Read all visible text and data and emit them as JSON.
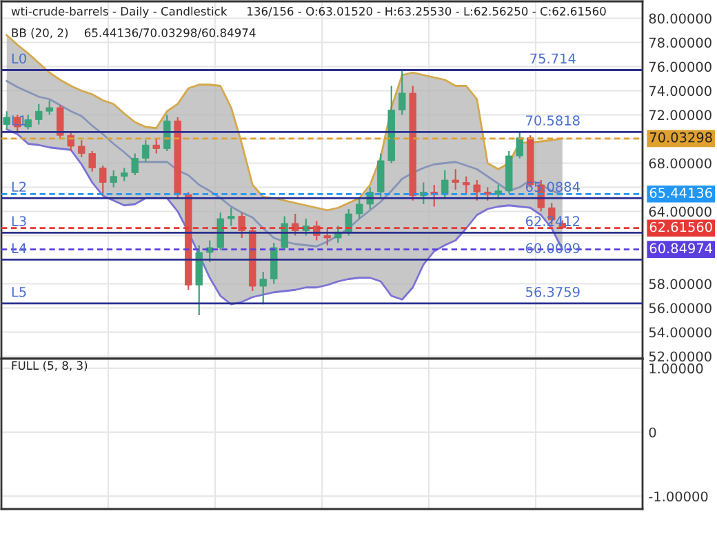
{
  "chart_data": [
    {
      "type": "candlestick",
      "title": "wti-crude-barrels - Daily - Candlestick",
      "subtitle": "136/156 - O:63.01520 - H:63.25530 - L:62.56250 - C:62.61560",
      "categories": [
        null,
        null,
        null,
        null,
        null,
        null,
        null,
        null,
        null,
        null,
        null,
        null,
        null,
        null,
        null,
        null,
        null,
        null,
        null,
        null,
        null,
        null,
        null,
        null,
        null,
        null,
        null,
        null,
        null,
        null,
        null,
        null,
        null,
        null,
        null,
        null,
        null,
        null,
        null,
        null,
        null,
        null,
        null,
        null,
        null,
        null,
        null,
        null,
        null,
        null,
        null,
        null,
        null,
        null,
        null,
        null,
        null,
        null
      ],
      "ohlc": [
        [
          71.2,
          72.3,
          70.8,
          71.8
        ],
        [
          71.8,
          72.0,
          70.6,
          71.0
        ],
        [
          71.0,
          72.0,
          70.8,
          71.6
        ],
        [
          71.6,
          72.9,
          71.2,
          72.3
        ],
        [
          72.3,
          73.2,
          72.0,
          72.6
        ],
        [
          72.6,
          72.8,
          70.0,
          70.3
        ],
        [
          70.3,
          70.6,
          69.0,
          69.4
        ],
        [
          69.4,
          69.9,
          68.5,
          68.8
        ],
        [
          68.8,
          69.0,
          67.3,
          67.6
        ],
        [
          67.6,
          67.8,
          65.3,
          66.4
        ],
        [
          66.4,
          67.4,
          66.0,
          66.9
        ],
        [
          66.9,
          67.6,
          66.5,
          67.2
        ],
        [
          67.2,
          68.8,
          67.0,
          68.4
        ],
        [
          68.4,
          69.9,
          68.1,
          69.5
        ],
        [
          69.5,
          70.0,
          68.8,
          69.2
        ],
        [
          69.2,
          72.0,
          69.0,
          71.5
        ],
        [
          71.5,
          71.8,
          65.0,
          65.4
        ],
        [
          65.4,
          65.6,
          57.5,
          57.9
        ],
        [
          57.9,
          61.2,
          55.4,
          60.6
        ],
        [
          60.6,
          61.6,
          59.8,
          61.0
        ],
        [
          61.0,
          63.9,
          60.8,
          63.4
        ],
        [
          63.4,
          64.3,
          62.8,
          63.6
        ],
        [
          63.6,
          63.9,
          61.8,
          62.4
        ],
        [
          62.4,
          62.6,
          57.4,
          57.8
        ],
        [
          57.8,
          59.0,
          56.3,
          58.4
        ],
        [
          58.4,
          61.4,
          58.0,
          61.0
        ],
        [
          61.0,
          63.6,
          60.8,
          63.0
        ],
        [
          63.0,
          63.8,
          62.0,
          62.4
        ],
        [
          62.4,
          63.4,
          62.0,
          62.8
        ],
        [
          62.8,
          63.2,
          61.6,
          62.0
        ],
        [
          62.0,
          62.6,
          61.2,
          61.8
        ],
        [
          61.8,
          62.8,
          61.4,
          62.3
        ],
        [
          62.3,
          64.2,
          62.0,
          63.8
        ],
        [
          63.8,
          65.2,
          63.4,
          64.6
        ],
        [
          64.6,
          66.0,
          64.2,
          65.6
        ],
        [
          65.6,
          68.8,
          65.2,
          68.2
        ],
        [
          68.2,
          74.4,
          68.0,
          72.4
        ],
        [
          72.4,
          75.7,
          72.0,
          73.8
        ],
        [
          73.8,
          74.4,
          64.9,
          65.3
        ],
        [
          65.3,
          66.4,
          64.6,
          65.6
        ],
        [
          65.6,
          66.2,
          64.4,
          65.4
        ],
        [
          65.4,
          67.4,
          65.0,
          66.6
        ],
        [
          66.6,
          67.5,
          65.8,
          66.4
        ],
        [
          66.4,
          66.9,
          65.4,
          66.2
        ],
        [
          66.2,
          66.6,
          64.9,
          65.6
        ],
        [
          65.6,
          66.0,
          64.9,
          65.4
        ],
        [
          65.4,
          66.2,
          65.0,
          65.7
        ],
        [
          65.7,
          69.0,
          65.5,
          68.6
        ],
        [
          68.6,
          70.6,
          68.4,
          70.1
        ],
        [
          70.1,
          70.3,
          66.0,
          66.2
        ],
        [
          66.2,
          66.6,
          64.0,
          64.3
        ],
        [
          64.3,
          64.7,
          62.9,
          63.3
        ],
        [
          63.0152,
          63.2553,
          62.5625,
          62.6156
        ],
        null,
        null,
        null,
        null,
        null
      ],
      "series": [
        {
          "type": "line",
          "color": "#d4a94a",
          "values": [
            78.6,
            77.8,
            77.1,
            76.3,
            75.5,
            74.9,
            74.4,
            74.0,
            73.7,
            73.2,
            72.9,
            72.1,
            71.4,
            71.0,
            70.9,
            72.3,
            72.9,
            74.2,
            74.5,
            74.5,
            74.4,
            72.6,
            69.6,
            66.2,
            65.2,
            65.1,
            64.9,
            64.7,
            64.5,
            64.3,
            64.1,
            64.3,
            64.7,
            65.1,
            66.2,
            68.5,
            72.6,
            75.3,
            75.5,
            75.3,
            75.1,
            74.9,
            74.4,
            74.4,
            73.3,
            68.0,
            67.5,
            68.0,
            69.7,
            69.7,
            69.8,
            69.9,
            70.03298,
            null,
            null,
            null,
            null,
            null
          ]
        },
        {
          "type": "line",
          "color": "#8595b8",
          "values": [
            74.8,
            74.3,
            73.9,
            73.5,
            73.3,
            72.8,
            72.3,
            71.9,
            71.1,
            70.4,
            69.6,
            68.9,
            68.1,
            68.1,
            68.1,
            68.1,
            67.4,
            67.0,
            66.2,
            65.7,
            65.1,
            64.4,
            63.9,
            63.5,
            62.6,
            61.8,
            61.5,
            61.3,
            61.2,
            61.1,
            61.5,
            62.0,
            62.6,
            63.4,
            64.1,
            64.8,
            65.7,
            66.7,
            67.2,
            67.6,
            67.9,
            68.0,
            68.1,
            67.8,
            67.5,
            66.9,
            66.3,
            65.7,
            66.0,
            66.6,
            66.2,
            65.7,
            65.44136,
            null,
            null,
            null,
            null,
            null
          ],
          "lower": [
            70.8,
            70.4,
            69.6,
            69.5,
            69.3,
            69.2,
            69.1,
            67.9,
            66.4,
            65.3,
            64.9,
            64.5,
            64.6,
            65.1,
            65.1,
            65.1,
            64.0,
            62.3,
            60.4,
            58.5,
            57.0,
            56.3,
            56.5,
            56.9,
            57.1,
            57.3,
            57.4,
            57.5,
            57.7,
            57.7,
            57.9,
            58.2,
            58.4,
            58.5,
            58.5,
            58.2,
            57.0,
            56.7,
            57.7,
            59.6,
            60.7,
            61.2,
            61.6,
            62.6,
            63.7,
            64.2,
            64.4,
            64.5,
            64.4,
            64.3,
            63.7,
            62.6,
            60.84974,
            null,
            null,
            null,
            null,
            null
          ],
          "upper": [
            78.6,
            77.8,
            77.1,
            76.3,
            75.5,
            74.9,
            74.4,
            74.0,
            73.7,
            73.2,
            72.9,
            72.1,
            71.4,
            71.0,
            70.9,
            72.3,
            72.9,
            74.2,
            74.5,
            74.5,
            74.4,
            72.6,
            69.6,
            66.2,
            65.2,
            65.1,
            64.9,
            64.7,
            64.5,
            64.3,
            64.1,
            64.3,
            64.7,
            65.1,
            66.2,
            68.5,
            72.6,
            75.3,
            75.5,
            75.3,
            75.1,
            74.9,
            74.4,
            74.4,
            73.3,
            68.0,
            67.5,
            68.0,
            69.7,
            69.7,
            69.8,
            69.9,
            70.03298,
            null,
            null,
            null,
            null,
            null
          ]
        },
        {
          "type": "line",
          "color": "#7b72d6",
          "values": [
            70.8,
            70.4,
            69.6,
            69.5,
            69.3,
            69.2,
            69.1,
            67.9,
            66.4,
            65.3,
            64.9,
            64.5,
            64.6,
            65.1,
            65.1,
            65.1,
            64.0,
            62.3,
            60.4,
            58.5,
            57.0,
            56.3,
            56.5,
            56.9,
            57.1,
            57.3,
            57.4,
            57.5,
            57.7,
            57.7,
            57.9,
            58.2,
            58.4,
            58.5,
            58.5,
            58.2,
            57.0,
            56.7,
            57.7,
            59.6,
            60.7,
            61.2,
            61.6,
            62.6,
            63.7,
            64.2,
            64.4,
            64.5,
            64.4,
            64.3,
            63.7,
            62.6,
            60.84974,
            null,
            null,
            null,
            null,
            null
          ]
        }
      ],
      "ref_lines": [
        {
          "axis": "y",
          "value": 75.714,
          "label": "75.714",
          "color": "#2b2f8f",
          "line_style": "solid"
        },
        {
          "axis": "y",
          "value": 70.5818,
          "label": "70.5818",
          "color": "#2b2f8f",
          "line_style": "solid"
        },
        {
          "axis": "y",
          "value": 65.0884,
          "label": "65.0884",
          "color": "#2b2f8f",
          "line_style": "solid"
        },
        {
          "axis": "y",
          "value": 62.2412,
          "label": "62.2412",
          "color": "#2b2f8f",
          "line_style": "solid"
        },
        {
          "axis": "y",
          "value": 60.0009,
          "label": "60.0009",
          "color": "#2b2f8f",
          "line_style": "solid"
        },
        {
          "axis": "y",
          "value": 56.3759,
          "label": "56.3759",
          "color": "#2b2f8f",
          "line_style": "solid"
        },
        {
          "axis": "y",
          "value": 70.03298,
          "label": "70.03298",
          "color": "#e0a030",
          "line_style": "dashed"
        },
        {
          "axis": "y",
          "value": 65.44136,
          "label": "65.44136",
          "color": "#2196f3",
          "line_style": "dashed"
        },
        {
          "axis": "y",
          "value": 62.6156,
          "label": "62.61560",
          "color": "#e53935",
          "line_style": "dashed"
        },
        {
          "axis": "y",
          "value": 60.84974,
          "label": "60.84974",
          "color": "#5b3ee0",
          "line_style": "dashed"
        }
      ],
      "annotations": [
        "BB (20, 2)",
        "65.44136/70.03298/60.84974",
        {
          "text": "L0",
          "y": 75.714
        },
        {
          "text": "L1",
          "y": 70.5818
        },
        {
          "text": "L2",
          "y": 65.0884
        },
        {
          "text": "L3",
          "y": 62.2412
        },
        {
          "text": "L4",
          "y": 60.0009
        },
        {
          "text": "L5",
          "y": 56.3759
        }
      ],
      "ylim": [
        51.8,
        81.4
      ],
      "yticks": [
        {
          "value": 52,
          "label": "52.00000"
        },
        {
          "value": 54,
          "label": "54.00000"
        },
        {
          "value": 56,
          "label": "56.00000"
        },
        {
          "value": 58,
          "label": "58.00000"
        },
        {
          "value": 60,
          "label": null
        },
        {
          "value": 62,
          "label": null
        },
        {
          "value": 64,
          "label": "64.00000"
        },
        {
          "value": 66,
          "label": null
        },
        {
          "value": 68,
          "label": "68.00000"
        },
        {
          "value": 70,
          "label": null
        },
        {
          "value": 72,
          "label": "72.00000"
        },
        {
          "value": 74,
          "label": "74.00000"
        },
        {
          "value": 76,
          "label": "76.00000"
        },
        {
          "value": 78,
          "label": "78.00000"
        },
        {
          "value": 80,
          "label": "80.00000"
        }
      ],
      "grid": true,
      "tick_labels": "y"
    },
    {
      "type": "line",
      "title": "FULL (5, 8, 3)",
      "categories": [
        null,
        null,
        null,
        null,
        null,
        null,
        null,
        null,
        null,
        null,
        null,
        null,
        null,
        null,
        null,
        null,
        null,
        null,
        null,
        null,
        null,
        null,
        null,
        null,
        null,
        null,
        null,
        null,
        null,
        null,
        null,
        null,
        null,
        null,
        null,
        null,
        null,
        null,
        null,
        null,
        null,
        null,
        null,
        null,
        null,
        null,
        null,
        null,
        null,
        null,
        null,
        null,
        null,
        null,
        null,
        null,
        null,
        null
      ],
      "ylim": [
        -1.2,
        1.15
      ],
      "yticks": [
        {
          "value": -1,
          "label": "-1.00000"
        },
        0,
        {
          "value": 1,
          "label": "1.00000"
        }
      ],
      "grid": true,
      "tick_labels": "y"
    }
  ]
}
